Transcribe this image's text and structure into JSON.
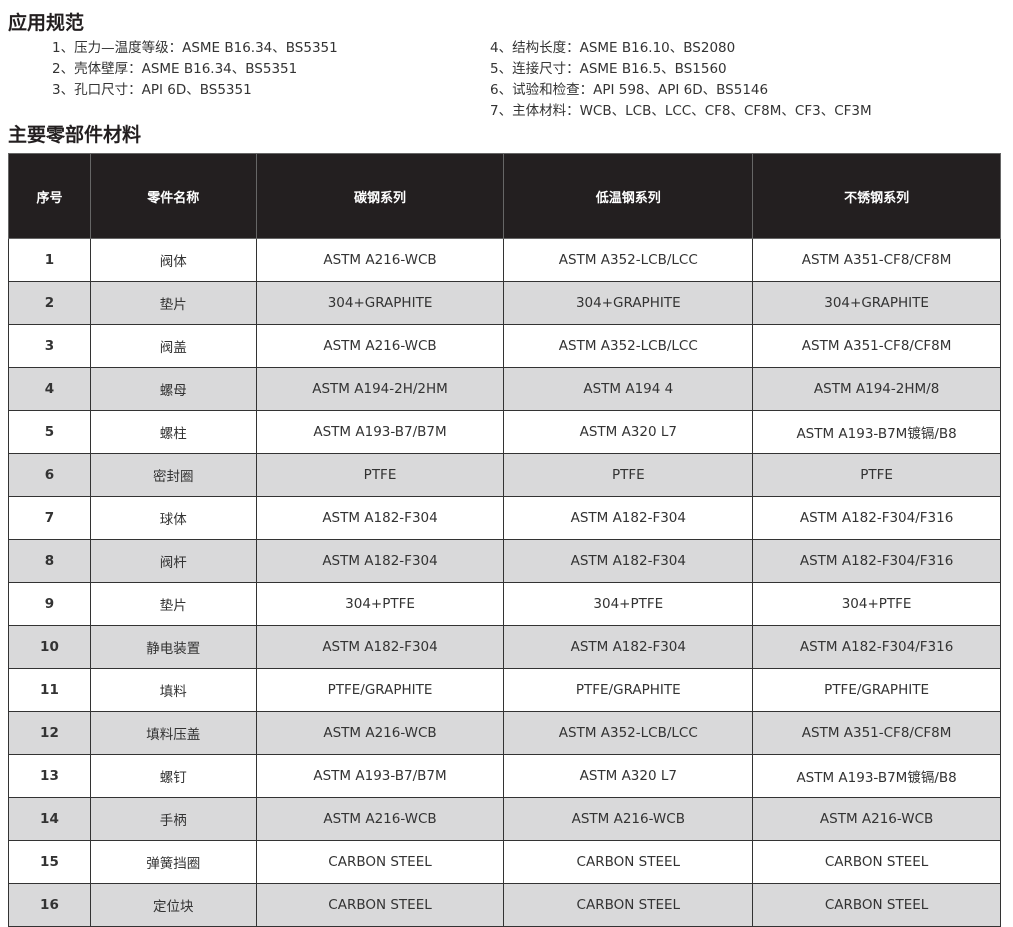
{
  "spec_title": "应用规范",
  "specs_left": [
    "1、压力—温度等级：ASME B16.34、BS5351",
    "2、壳体壁厚：ASME B16.34、BS5351",
    "3、孔口尺寸：API 6D、BS5351"
  ],
  "specs_right": [
    "4、结构长度：ASME B16.10、BS2080",
    "5、连接尺寸：ASME B16.5、BS1560",
    "6、试验和检查：API 598、API 6D、BS5146",
    "7、主体材料：WCB、LCB、LCC、CF8、CF8M、CF3、CF3M"
  ],
  "materials_title": "主要零部件材料",
  "headers": [
    "序号",
    "零件名称",
    "碳钢系列",
    "低温钢系列",
    "不锈钢系列"
  ],
  "rows": [
    [
      "1",
      "阀体",
      "ASTM A216-WCB",
      "ASTM A352-LCB/LCC",
      "ASTM A351-CF8/CF8M"
    ],
    [
      "2",
      "垫片",
      "304+GRAPHITE",
      "304+GRAPHITE",
      "304+GRAPHITE"
    ],
    [
      "3",
      "阀盖",
      "ASTM A216-WCB",
      "ASTM A352-LCB/LCC",
      "ASTM A351-CF8/CF8M"
    ],
    [
      "4",
      "螺母",
      "ASTM A194-2H/2HM",
      "ASTM A194 4",
      "ASTM A194-2HM/8"
    ],
    [
      "5",
      "螺柱",
      "ASTM A193-B7/B7M",
      "ASTM A320 L7",
      "ASTM A193-B7M镀镉/B8"
    ],
    [
      "6",
      "密封圈",
      "PTFE",
      "PTFE",
      "PTFE"
    ],
    [
      "7",
      "球体",
      "ASTM A182-F304",
      "ASTM A182-F304",
      "ASTM A182-F304/F316"
    ],
    [
      "8",
      "阀杆",
      "ASTM A182-F304",
      "ASTM A182-F304",
      "ASTM A182-F304/F316"
    ],
    [
      "9",
      "垫片",
      "304+PTFE",
      "304+PTFE",
      "304+PTFE"
    ],
    [
      "10",
      "静电装置",
      "ASTM A182-F304",
      "ASTM A182-F304",
      "ASTM A182-F304/F316"
    ],
    [
      "11",
      "填料",
      "PTFE/GRAPHITE",
      "PTFE/GRAPHITE",
      "PTFE/GRAPHITE"
    ],
    [
      "12",
      "填料压盖",
      "ASTM A216-WCB",
      "ASTM A352-LCB/LCC",
      "ASTM A351-CF8/CF8M"
    ],
    [
      "13",
      "螺钉",
      "ASTM A193-B7/B7M",
      "ASTM A320 L7",
      "ASTM A193-B7M镀镉/B8"
    ],
    [
      "14",
      "手柄",
      "ASTM A216-WCB",
      "ASTM A216-WCB",
      "ASTM A216-WCB"
    ],
    [
      "15",
      "弹簧挡圈",
      "CARBON STEEL",
      "CARBON STEEL",
      "CARBON STEEL"
    ],
    [
      "16",
      "定位块",
      "CARBON STEEL",
      "CARBON STEEL",
      "CARBON STEEL"
    ]
  ]
}
